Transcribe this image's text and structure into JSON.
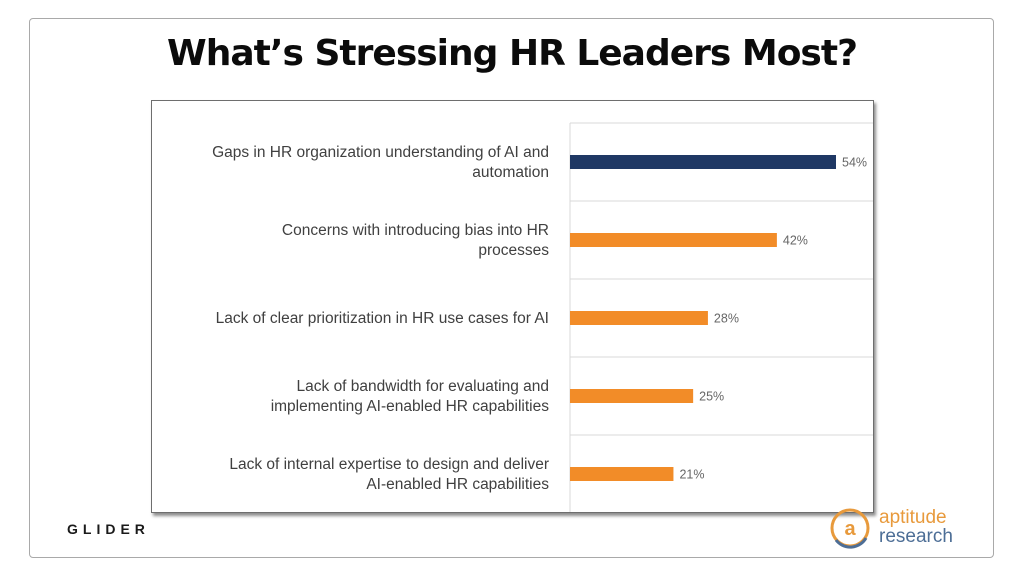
{
  "slide": {
    "title": "What’s Stressing HR Leaders Most?",
    "footer_left_brand": "GLIDER",
    "footer_right_logo": {
      "line1": "aptitude",
      "line2": "research",
      "glyph": "a"
    }
  },
  "chart_data": {
    "type": "bar",
    "orientation": "horizontal",
    "categories": [
      [
        "Gaps in HR organization understanding of AI and",
        "automation"
      ],
      [
        "Concerns with introducing bias into HR",
        "processes"
      ],
      [
        "Lack of clear prioritization in HR use cases for AI"
      ],
      [
        "Lack of bandwidth for evaluating and",
        "implementing AI-enabled HR capabilities"
      ],
      [
        "Lack of internal expertise to design and deliver",
        "AI-enabled HR capabilities"
      ]
    ],
    "values": [
      54,
      42,
      28,
      25,
      21
    ],
    "value_labels": [
      "54%",
      "42%",
      "28%",
      "25%",
      "21%"
    ],
    "bar_colors": [
      "#1f3864",
      "#f28c28",
      "#f28c28",
      "#f28c28",
      "#f28c28"
    ],
    "xlim": [
      0,
      60
    ],
    "grid": true,
    "legend": "none"
  },
  "colors": {
    "highlight_bar": "#1f3864",
    "default_bar": "#f28c28",
    "logo_orange": "#e89a3c",
    "logo_blue": "#4d6e96"
  }
}
